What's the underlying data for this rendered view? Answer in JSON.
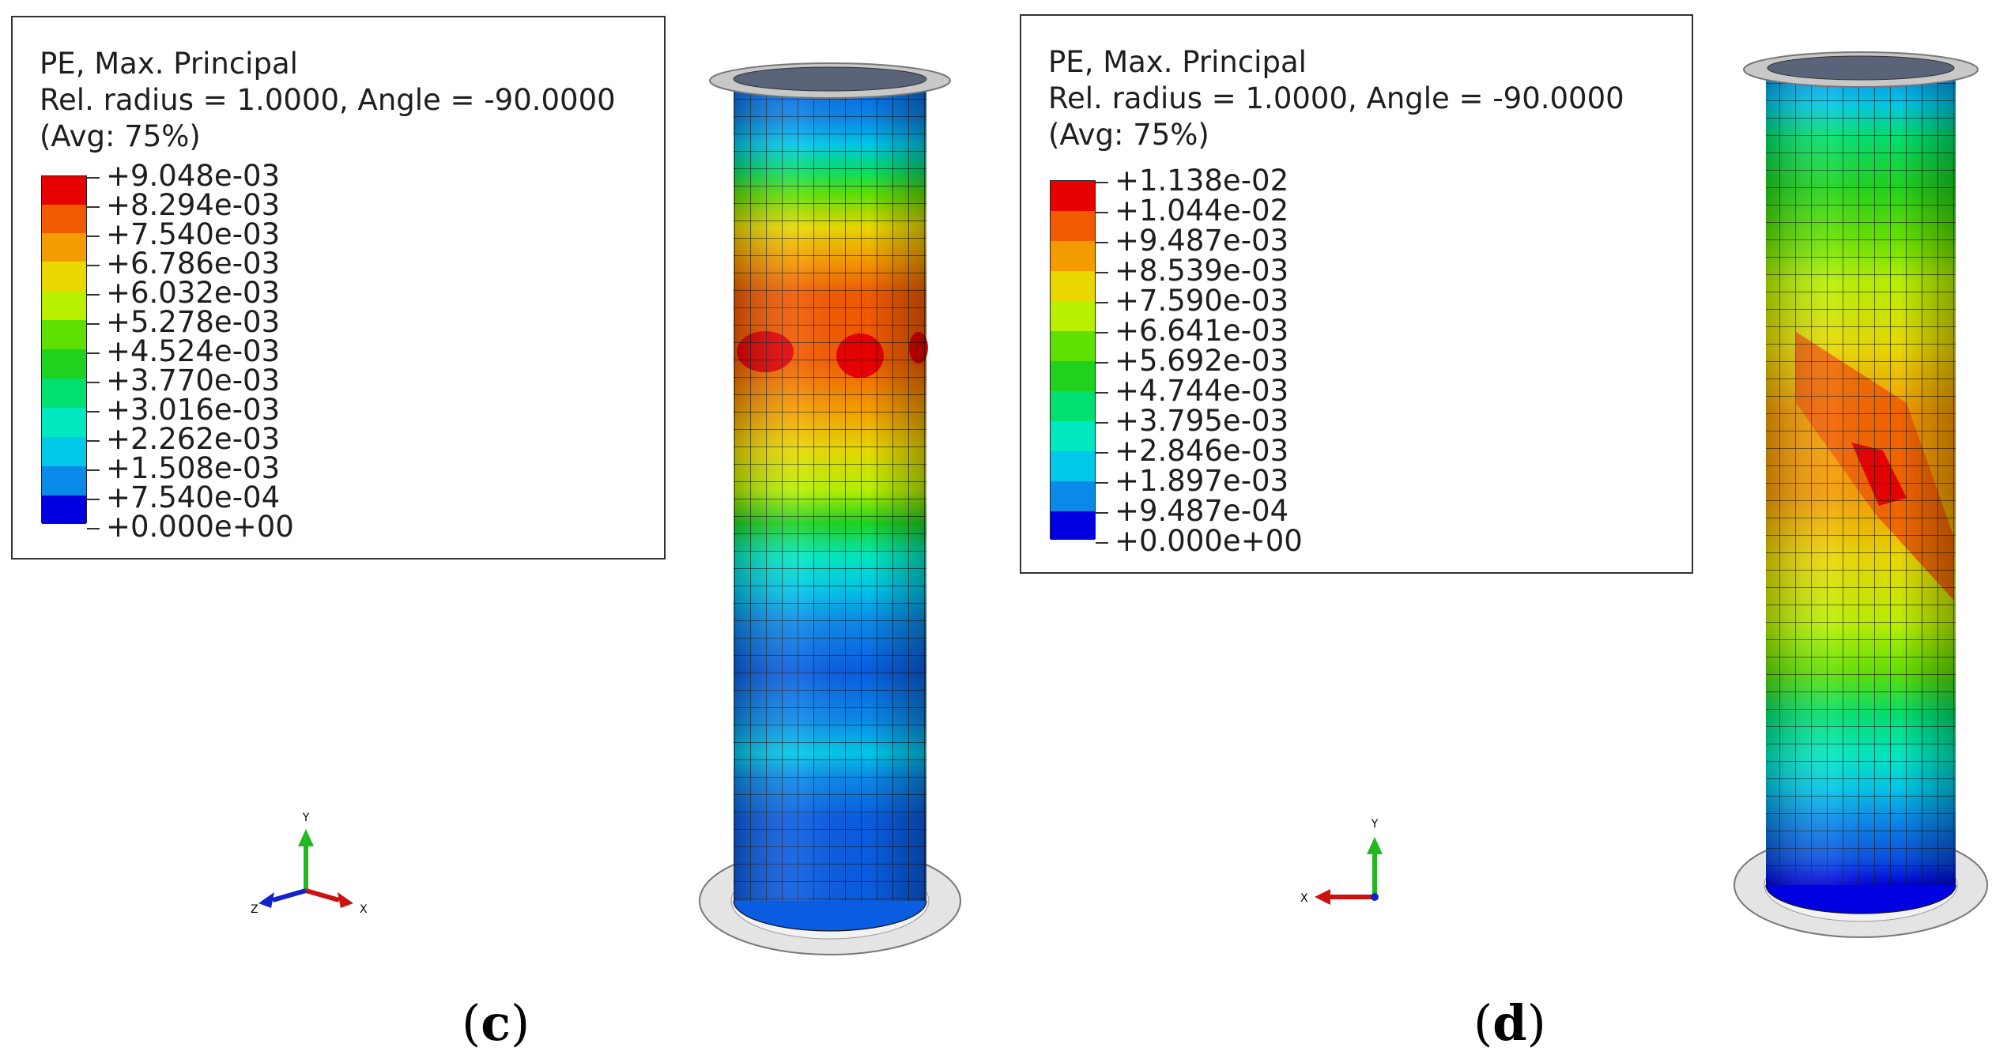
{
  "panels": [
    {
      "id": "c",
      "caption_open": "(",
      "caption_letter": "c",
      "caption_close": ")",
      "legend": {
        "line1": "PE, Max. Principal",
        "line2": "Rel. radius = 1.0000, Angle = -90.0000",
        "line3": "(Avg: 75%)",
        "values": [
          "+9.048e-03",
          "+8.294e-03",
          "+7.540e-03",
          "+6.786e-03",
          "+6.032e-03",
          "+5.278e-03",
          "+4.524e-03",
          "+3.770e-03",
          "+3.016e-03",
          "+2.262e-03",
          "+1.508e-03",
          "+7.540e-04",
          "+0.000e+00"
        ]
      },
      "triad": {
        "up": "Y",
        "left": "Z",
        "right": "X"
      }
    },
    {
      "id": "d",
      "caption_open": "(",
      "caption_letter": "d",
      "caption_close": ")",
      "legend": {
        "line1": "PE, Max. Principal",
        "line2": "Rel. radius = 1.0000, Angle = -90.0000",
        "line3": "(Avg: 75%)",
        "values": [
          "+1.138e-02",
          "+1.044e-02",
          "+9.487e-03",
          "+8.539e-03",
          "+7.590e-03",
          "+6.641e-03",
          "+5.692e-03",
          "+4.744e-03",
          "+3.795e-03",
          "+2.846e-03",
          "+1.897e-03",
          "+9.487e-04",
          "+0.000e+00"
        ]
      },
      "triad": {
        "up": "Y",
        "left": "X"
      }
    }
  ],
  "colormap": [
    "#e60000",
    "#f05a00",
    "#f49b00",
    "#e8d800",
    "#b8f000",
    "#5ee000",
    "#1ed21e",
    "#00e070",
    "#00e8c0",
    "#00c8e8",
    "#0a8ae8",
    "#0a4ce0",
    "#0000e0"
  ]
}
